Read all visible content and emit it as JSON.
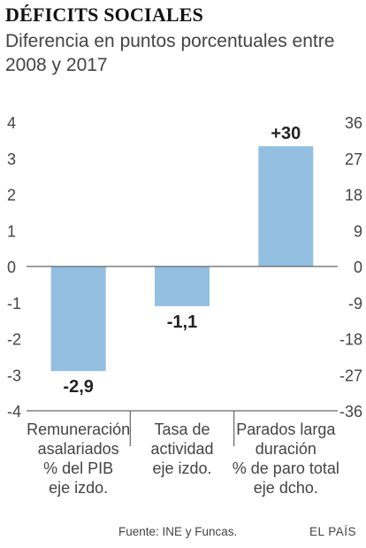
{
  "header": {
    "title": "DÉFICITS SOCIALES",
    "subtitle": "Diferencia en puntos porcentuales entre 2008 y 2017"
  },
  "footer": {
    "source": "Fuente: INE y Funcas.",
    "brand": "EL PAÍS"
  },
  "colors": {
    "bar": "#93bfe0",
    "axis": "#666666",
    "text": "#333333"
  },
  "chart_data": {
    "type": "bar",
    "categories": [
      [
        "Remuneración",
        "asalariados",
        "% del PIB",
        "eje izdo."
      ],
      [
        "Tasa de",
        "actividad",
        "eje izdo."
      ],
      [
        "Parados larga",
        "duración",
        "% de paro total",
        "eje dcho."
      ]
    ],
    "values": [
      -2.9,
      -1.1,
      30
    ],
    "value_labels": [
      "-2,9",
      "-1,1",
      "+30"
    ],
    "axis_for_bar": [
      "left",
      "left",
      "right"
    ],
    "left_axis": {
      "ylim": [
        -4,
        4
      ],
      "ticks": [
        4,
        3,
        2,
        1,
        0,
        -1,
        -2,
        -3,
        -4
      ],
      "tick_labels": [
        "4",
        "3",
        "2",
        "1",
        "0",
        "-1",
        "-2",
        "-3",
        "-4"
      ]
    },
    "right_axis": {
      "ylim": [
        -36,
        36
      ],
      "ticks": [
        36,
        27,
        18,
        9,
        0,
        -9,
        -18,
        -27,
        -36
      ],
      "tick_labels": [
        "36",
        "27",
        "18",
        "9",
        "0",
        "-9",
        "-18",
        "-27",
        "-36"
      ]
    },
    "grid": false
  }
}
